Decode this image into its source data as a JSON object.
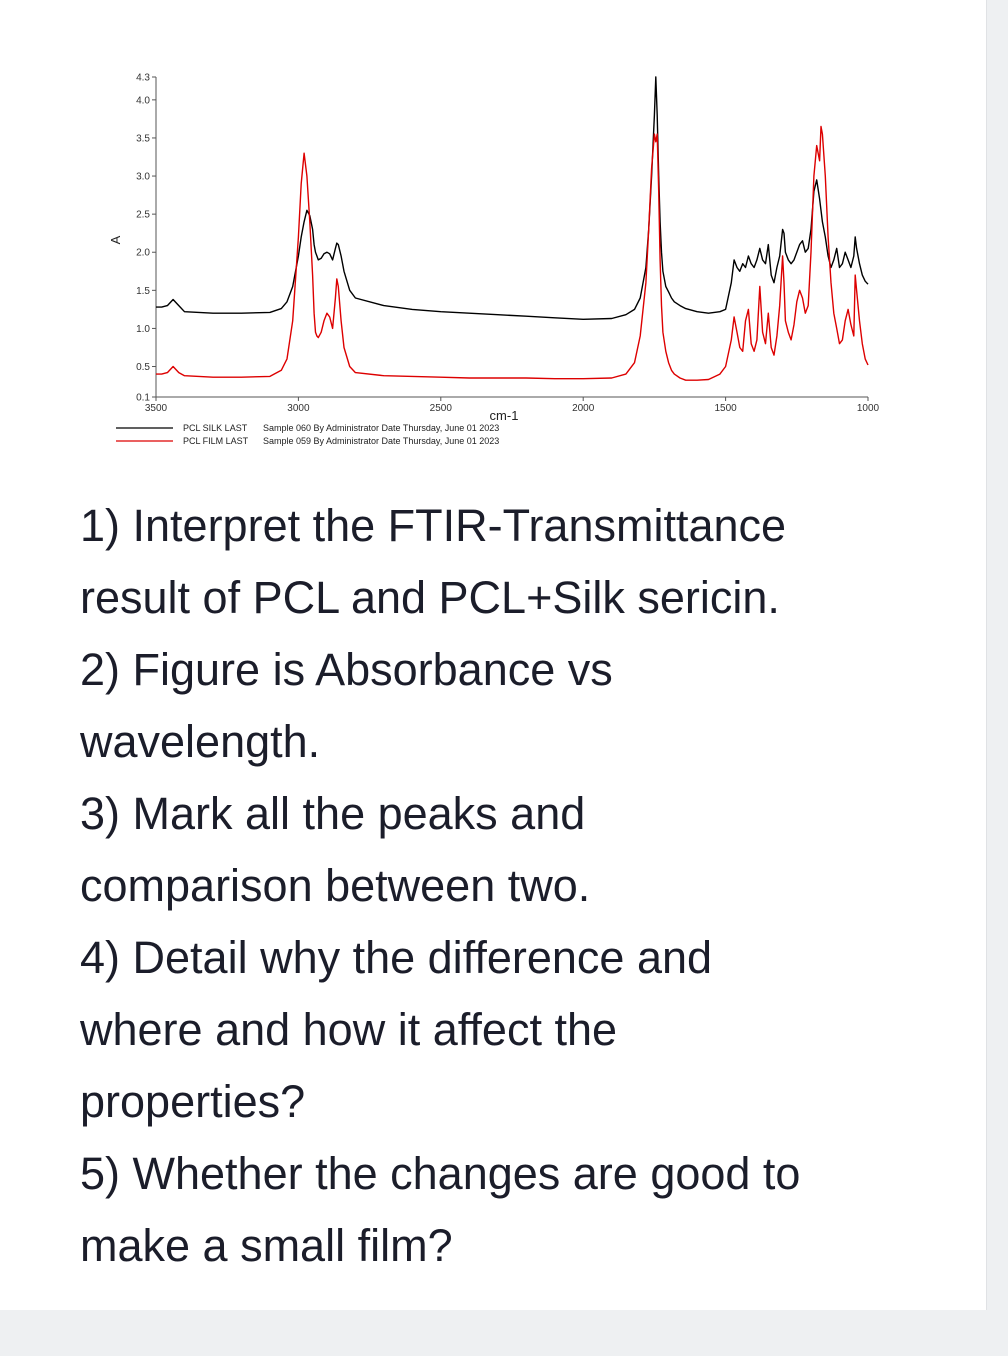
{
  "question": {
    "lines": [
      "1) Interpret the FTIR-Transmittance",
      "result of PCL and PCL+Silk sericin.",
      "2) Figure is Absorbance vs",
      "wavelength.",
      "3) Mark all the peaks and",
      "comparison between two.",
      "4) Detail why the difference and",
      "where and how it affect the",
      "properties?",
      "5) Whether the changes are good to",
      "make a small film?"
    ]
  },
  "chart_data": {
    "type": "line",
    "title": "",
    "xlabel": "cm-1",
    "ylabel": "A",
    "xlim": [
      3500,
      1000
    ],
    "ylim": [
      0.1,
      4.3
    ],
    "x_ticks": [
      "3500",
      "3000",
      "2500",
      "2000",
      "1500",
      "1000"
    ],
    "y_ticks": [
      "0.1",
      "0.5",
      "1.0",
      "1.5",
      "2.0",
      "2.5",
      "3.0",
      "3.5",
      "4.0",
      "4.3"
    ],
    "grid": false,
    "legend_placement": "bottom-left",
    "series": [
      {
        "name": "PCL SILK LAST",
        "description": "Sample 060 By Administrator Date Thursday, June 01 2023",
        "color": "#000000",
        "x": [
          3500,
          3480,
          3460,
          3440,
          3420,
          3400,
          3300,
          3200,
          3100,
          3060,
          3040,
          3020,
          3000,
          2990,
          2980,
          2970,
          2960,
          2950,
          2945,
          2940,
          2935,
          2930,
          2920,
          2910,
          2900,
          2890,
          2880,
          2870,
          2865,
          2860,
          2850,
          2840,
          2820,
          2800,
          2700,
          2600,
          2500,
          2400,
          2300,
          2200,
          2100,
          2000,
          1900,
          1850,
          1820,
          1800,
          1780,
          1770,
          1760,
          1750,
          1745,
          1740,
          1735,
          1730,
          1725,
          1720,
          1710,
          1700,
          1690,
          1680,
          1660,
          1640,
          1600,
          1560,
          1520,
          1500,
          1480,
          1470,
          1460,
          1450,
          1440,
          1430,
          1420,
          1410,
          1400,
          1390,
          1380,
          1370,
          1360,
          1350,
          1340,
          1330,
          1320,
          1310,
          1300,
          1295,
          1290,
          1280,
          1270,
          1260,
          1250,
          1240,
          1230,
          1220,
          1210,
          1200,
          1190,
          1180,
          1170,
          1165,
          1160,
          1150,
          1140,
          1130,
          1120,
          1110,
          1100,
          1090,
          1080,
          1070,
          1060,
          1050,
          1045,
          1040,
          1030,
          1020,
          1010,
          1000
        ],
        "y": [
          1.28,
          1.28,
          1.3,
          1.38,
          1.3,
          1.22,
          1.2,
          1.2,
          1.21,
          1.26,
          1.35,
          1.55,
          1.95,
          2.2,
          2.4,
          2.55,
          2.48,
          2.3,
          2.1,
          2.0,
          1.95,
          1.9,
          1.92,
          1.98,
          2.0,
          1.98,
          1.9,
          2.05,
          2.12,
          2.1,
          1.95,
          1.75,
          1.5,
          1.4,
          1.3,
          1.25,
          1.22,
          1.2,
          1.18,
          1.16,
          1.14,
          1.12,
          1.13,
          1.18,
          1.25,
          1.4,
          1.8,
          2.3,
          3.0,
          3.8,
          4.3,
          3.8,
          3.0,
          2.4,
          2.0,
          1.75,
          1.55,
          1.48,
          1.4,
          1.35,
          1.3,
          1.26,
          1.22,
          1.2,
          1.22,
          1.25,
          1.6,
          1.9,
          1.8,
          1.75,
          1.85,
          1.8,
          1.95,
          1.85,
          1.8,
          1.9,
          2.05,
          1.9,
          1.85,
          2.1,
          1.7,
          1.6,
          1.8,
          1.95,
          2.3,
          2.25,
          2.0,
          1.9,
          1.85,
          1.9,
          2.0,
          2.1,
          2.15,
          2.0,
          2.05,
          2.3,
          2.8,
          2.95,
          2.7,
          2.55,
          2.4,
          2.2,
          1.95,
          1.8,
          1.9,
          2.05,
          1.8,
          1.85,
          2.0,
          1.9,
          1.8,
          1.95,
          2.2,
          2.05,
          1.85,
          1.7,
          1.62,
          1.58
        ]
      },
      {
        "name": "PCL FILM LAST",
        "description": "Sample 059 By Administrator Date Thursday, June 01 2023",
        "color": "#dd0000",
        "x": [
          3500,
          3480,
          3460,
          3440,
          3420,
          3400,
          3300,
          3200,
          3100,
          3060,
          3040,
          3020,
          3000,
          2990,
          2980,
          2970,
          2960,
          2950,
          2945,
          2940,
          2935,
          2930,
          2920,
          2910,
          2900,
          2890,
          2880,
          2870,
          2865,
          2860,
          2850,
          2840,
          2820,
          2800,
          2700,
          2600,
          2500,
          2400,
          2300,
          2200,
          2100,
          2000,
          1900,
          1850,
          1820,
          1800,
          1780,
          1770,
          1760,
          1750,
          1745,
          1740,
          1735,
          1730,
          1725,
          1720,
          1710,
          1700,
          1690,
          1680,
          1660,
          1640,
          1600,
          1560,
          1520,
          1500,
          1480,
          1470,
          1460,
          1450,
          1440,
          1430,
          1420,
          1410,
          1400,
          1390,
          1380,
          1370,
          1360,
          1350,
          1340,
          1330,
          1320,
          1310,
          1300,
          1295,
          1290,
          1280,
          1270,
          1260,
          1250,
          1240,
          1230,
          1220,
          1210,
          1200,
          1190,
          1180,
          1170,
          1165,
          1160,
          1150,
          1140,
          1130,
          1120,
          1110,
          1100,
          1090,
          1080,
          1070,
          1060,
          1050,
          1045,
          1040,
          1030,
          1020,
          1010,
          1000
        ],
        "y": [
          0.4,
          0.4,
          0.42,
          0.5,
          0.42,
          0.38,
          0.36,
          0.36,
          0.37,
          0.45,
          0.6,
          1.1,
          2.2,
          2.9,
          3.3,
          3.0,
          2.4,
          1.7,
          1.2,
          0.95,
          0.9,
          0.88,
          0.95,
          1.1,
          1.2,
          1.15,
          1.0,
          1.4,
          1.65,
          1.55,
          1.1,
          0.75,
          0.5,
          0.42,
          0.38,
          0.37,
          0.36,
          0.35,
          0.35,
          0.35,
          0.34,
          0.34,
          0.35,
          0.4,
          0.55,
          0.9,
          1.6,
          2.3,
          3.1,
          3.55,
          3.45,
          3.55,
          2.8,
          1.9,
          1.3,
          0.95,
          0.7,
          0.55,
          0.45,
          0.4,
          0.35,
          0.32,
          0.32,
          0.33,
          0.4,
          0.5,
          0.85,
          1.15,
          0.95,
          0.75,
          0.7,
          1.1,
          1.25,
          0.8,
          0.7,
          0.85,
          1.55,
          0.95,
          0.8,
          1.2,
          0.75,
          0.65,
          0.9,
          1.3,
          1.95,
          1.6,
          1.1,
          0.95,
          0.85,
          1.05,
          1.35,
          1.5,
          1.4,
          1.2,
          1.3,
          2.0,
          3.0,
          3.4,
          3.2,
          3.65,
          3.55,
          3.0,
          2.2,
          1.6,
          1.2,
          1.0,
          0.8,
          0.85,
          1.1,
          1.25,
          1.05,
          0.9,
          1.7,
          1.5,
          1.1,
          0.8,
          0.6,
          0.52
        ]
      }
    ]
  }
}
